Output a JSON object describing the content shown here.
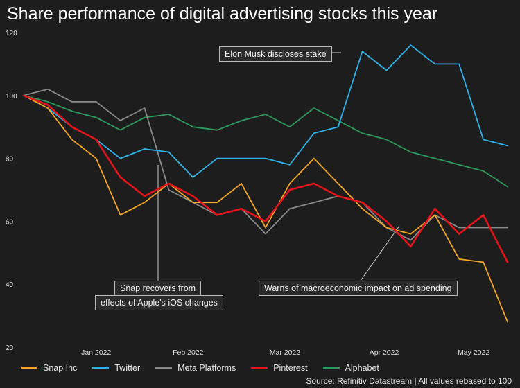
{
  "title": "Share performance of digital advertising stocks this year",
  "source": "Source: Refinitiv Datastream | All values rebased to 100",
  "annotations": {
    "musk": "Elon Musk discloses stake",
    "snap_1": "Snap recovers from",
    "snap_2": "effects of Apple's iOS changes",
    "macro": "Warns of macroeconomic impact on ad spending"
  },
  "colors": {
    "Snap Inc": "#f5a623",
    "Twitter": "#2fb4e9",
    "Meta Platforms": "#8a8a8a",
    "Pinterest": "#e5141b",
    "Alphabet": "#2e9b5c"
  },
  "chart_data": {
    "type": "line",
    "title": "Share performance of digital advertising stocks this year",
    "xlabel": "",
    "ylabel": "",
    "ylim": [
      20,
      120
    ],
    "yticks": [
      20,
      40,
      60,
      80,
      100,
      120
    ],
    "xlim": [
      0,
      100
    ],
    "x": [
      0,
      5,
      10,
      15,
      20,
      25,
      30,
      35,
      40,
      45,
      50,
      55,
      60,
      65,
      70,
      75,
      80,
      85,
      90,
      95,
      100
    ],
    "xticks": [
      {
        "label": "Jan 2022",
        "x": 15
      },
      {
        "label": "Feb 2022",
        "x": 34
      },
      {
        "label": "Mar 2022",
        "x": 54
      },
      {
        "label": "Apr 2022",
        "x": 74.5
      },
      {
        "label": "May 2022",
        "x": 93
      }
    ],
    "series": [
      {
        "name": "Snap Inc",
        "values": [
          100,
          96,
          86,
          80,
          62,
          66,
          72,
          66,
          66,
          72,
          58,
          72,
          80,
          72,
          64,
          58,
          56,
          62,
          48,
          47,
          28
        ]
      },
      {
        "name": "Twitter",
        "values": [
          100,
          96,
          90,
          86,
          80,
          83,
          82,
          74,
          80,
          80,
          80,
          78,
          88,
          90,
          114,
          108,
          116,
          110,
          110,
          86,
          84
        ]
      },
      {
        "name": "Meta Platforms",
        "values": [
          100,
          102,
          98,
          98,
          92,
          96,
          70,
          66,
          62,
          64,
          56,
          64,
          66,
          68,
          66,
          58,
          54,
          62,
          58,
          58,
          58
        ]
      },
      {
        "name": "Pinterest",
        "values": [
          100,
          97,
          90,
          86,
          74,
          68,
          72,
          68,
          62,
          64,
          60,
          70,
          72,
          68,
          66,
          60,
          52,
          64,
          56,
          62,
          47
        ]
      },
      {
        "name": "Alphabet",
        "values": [
          100,
          98,
          95,
          93,
          89,
          93,
          94,
          90,
          89,
          92,
          94,
          90,
          96,
          92,
          88,
          86,
          82,
          80,
          78,
          76,
          71
        ]
      }
    ],
    "legend": "bottom"
  }
}
